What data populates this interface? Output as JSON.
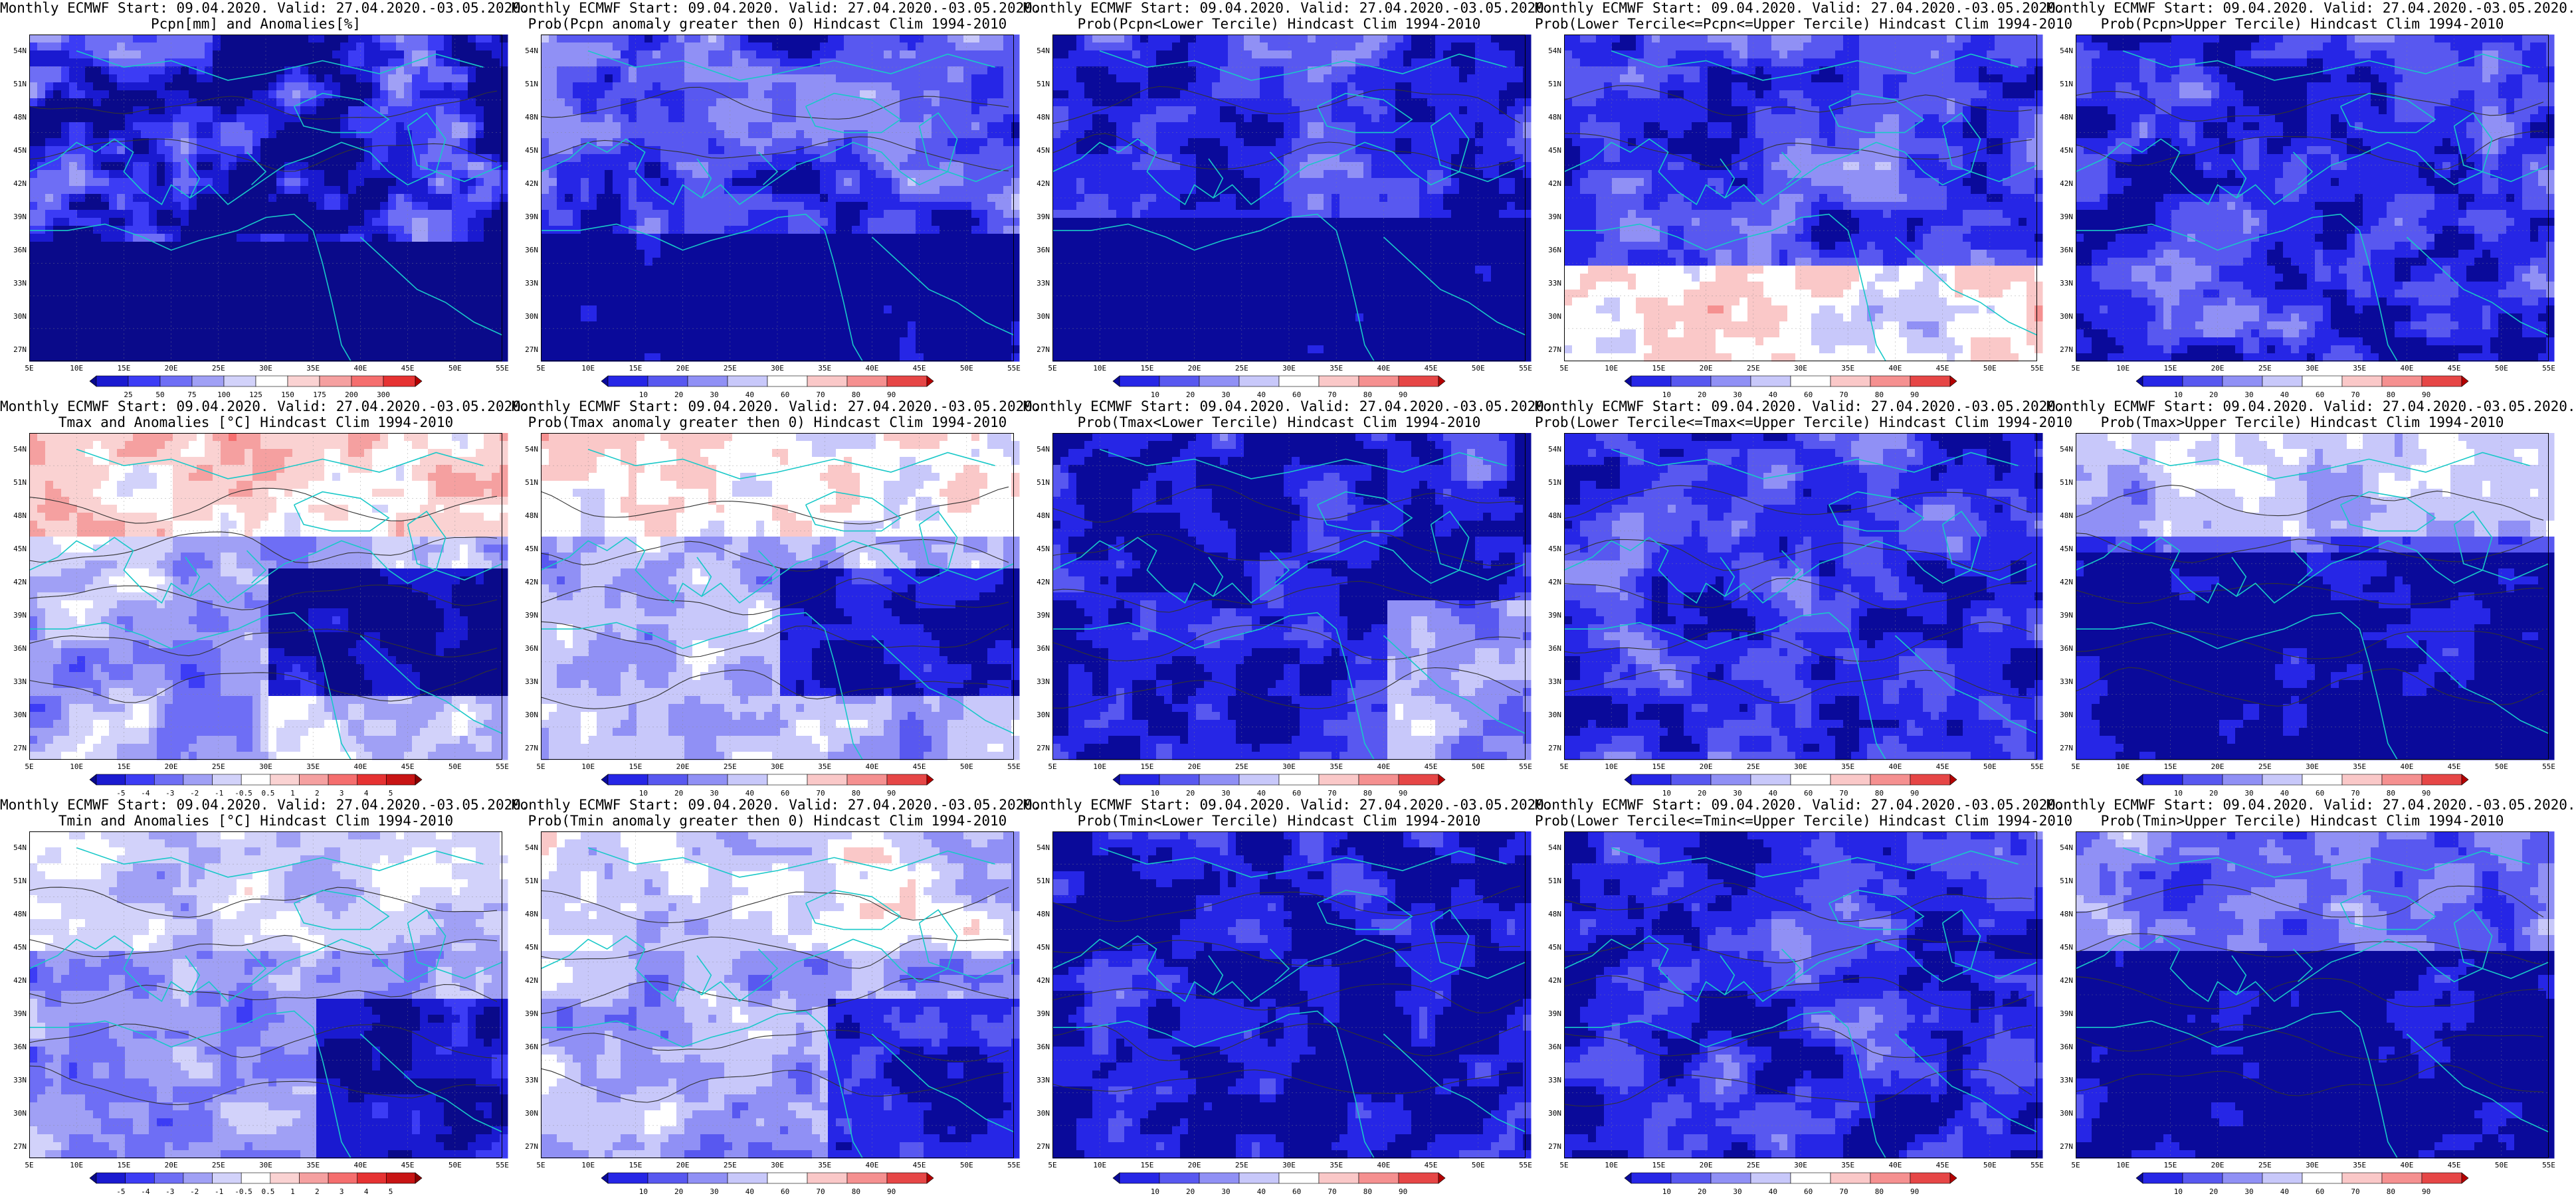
{
  "map_common": {
    "lat_labels": [
      "54N",
      "51N",
      "48N",
      "45N",
      "42N",
      "39N",
      "36N",
      "33N",
      "30N",
      "27N"
    ],
    "lon_labels": [
      "5E",
      "10E",
      "15E",
      "20E",
      "25E",
      "30E",
      "35E",
      "40E",
      "45E",
      "50E",
      "55E"
    ],
    "lat_range": [
      "27N",
      "55N"
    ],
    "lon_range": [
      "5E",
      "55E"
    ],
    "coast_color": "#19c8c8",
    "contour_color": "#333333"
  },
  "colorbars": {
    "pcpn_anom": {
      "labels": [
        "25",
        "50",
        "75",
        "100",
        "125",
        "150",
        "175",
        "200",
        "300"
      ],
      "colors": [
        "#0a0a8a",
        "#1a1ad0",
        "#3c3cf5",
        "#6e6ef5",
        "#a0a0f5",
        "#d2d2fa",
        "#ffffff",
        "#fad2d2",
        "#f5a0a0",
        "#f56e6e",
        "#e63232",
        "#b40000"
      ]
    },
    "prob": {
      "labels": [
        "10",
        "20",
        "30",
        "40",
        "60",
        "70",
        "80",
        "90"
      ],
      "colors": [
        "#0a0a9a",
        "#2626e6",
        "#5858f0",
        "#9090f5",
        "#c8c8fa",
        "#ffffff",
        "#fac8c8",
        "#f59090",
        "#e64646",
        "#b40000"
      ]
    },
    "temp_anom": {
      "labels": [
        "-5",
        "-4",
        "-3",
        "-2",
        "-1",
        "-0.5",
        "0.5",
        "1",
        "2",
        "3",
        "4",
        "5"
      ],
      "colors": [
        "#0a0a8a",
        "#1a1ad0",
        "#3c3cf5",
        "#6e6ef5",
        "#a0a0f5",
        "#d2d2fa",
        "#ffffff",
        "#fad2d2",
        "#f5a0a0",
        "#f56e6e",
        "#e63232",
        "#c81414",
        "#8c0000"
      ]
    }
  },
  "panels": [
    {
      "title1": "Monthly ECMWF Start: 09.04.2020. Valid: 27.04.2020.-03.05.2020.",
      "title2": "Pcpn[mm] and Anomalies[%]",
      "colorbar": "pcpn_anom",
      "field": "pcpn_anom"
    },
    {
      "title1": "Monthly ECMWF Start: 09.04.2020. Valid: 27.04.2020.-03.05.2020.",
      "title2": "Prob(Pcpn anomaly greater then 0) Hindcast Clim 1994-2010",
      "colorbar": "prob",
      "field": "pcpn_prob_gt0"
    },
    {
      "title1": "Monthly ECMWF Start: 09.04.2020. Valid: 27.04.2020.-03.05.2020.",
      "title2": "Prob(Pcpn<Lower Tercile) Hindcast Clim 1994-2010",
      "colorbar": "prob",
      "field": "pcpn_prob_lower"
    },
    {
      "title1": "Monthly ECMWF Start: 09.04.2020. Valid: 27.04.2020.-03.05.2020.",
      "title2": "Prob(Lower Tercile<=Pcpn<=Upper Tercile) Hindcast Clim 1994-2010",
      "colorbar": "prob",
      "field": "pcpn_prob_middle"
    },
    {
      "title1": "Monthly ECMWF Start: 09.04.2020. Valid: 27.04.2020.-03.05.2020.",
      "title2": "Prob(Pcpn>Upper Tercile) Hindcast Clim 1994-2010",
      "colorbar": "prob",
      "field": "pcpn_prob_upper"
    },
    {
      "title1": "Monthly ECMWF Start: 09.04.2020. Valid: 27.04.2020.-03.05.2020.",
      "title2": "Tmax and Anomalies [°C] Hindcast Clim 1994-2010",
      "colorbar": "temp_anom",
      "field": "tmax_anom"
    },
    {
      "title1": "Monthly ECMWF Start: 09.04.2020. Valid: 27.04.2020.-03.05.2020.",
      "title2": "Prob(Tmax anomaly greater then 0) Hindcast Clim 1994-2010",
      "colorbar": "prob",
      "field": "tmax_prob_gt0"
    },
    {
      "title1": "Monthly ECMWF Start: 09.04.2020. Valid: 27.04.2020.-03.05.2020.",
      "title2": "Prob(Tmax<Lower Tercile) Hindcast Clim 1994-2010",
      "colorbar": "prob",
      "field": "tmax_prob_lower"
    },
    {
      "title1": "Monthly ECMWF Start: 09.04.2020. Valid: 27.04.2020.-03.05.2020.",
      "title2": "Prob(Lower Tercile<=Tmax<=Upper Tercile) Hindcast Clim 1994-2010",
      "colorbar": "prob",
      "field": "tmax_prob_middle"
    },
    {
      "title1": "Monthly ECMWF Start: 09.04.2020. Valid: 27.04.2020.-03.05.2020.",
      "title2": "Prob(Tmax>Upper Tercile) Hindcast Clim 1994-2010",
      "colorbar": "prob",
      "field": "tmax_prob_upper"
    },
    {
      "title1": "Monthly ECMWF Start: 09.04.2020. Valid: 27.04.2020.-03.05.2020.",
      "title2": "Tmin and Anomalies [°C] Hindcast Clim 1994-2010",
      "colorbar": "temp_anom",
      "field": "tmin_anom"
    },
    {
      "title1": "Monthly ECMWF Start: 09.04.2020. Valid: 27.04.2020.-03.05.2020.",
      "title2": "Prob(Tmin anomaly greater then 0) Hindcast Clim 1994-2010",
      "colorbar": "prob",
      "field": "tmin_prob_gt0"
    },
    {
      "title1": "Monthly ECMWF Start: 09.04.2020. Valid: 27.04.2020.-03.05.2020.",
      "title2": "Prob(Tmin<Lower Tercile) Hindcast Clim 1994-2010",
      "colorbar": "prob",
      "field": "tmin_prob_lower"
    },
    {
      "title1": "Monthly ECMWF Start: 09.04.2020. Valid: 27.04.2020.-03.05.2020.",
      "title2": "Prob(Lower Tercile<=Tmin<=Upper Tercile) Hindcast Clim 1994-2010",
      "colorbar": "prob",
      "field": "tmin_prob_middle"
    },
    {
      "title1": "Monthly ECMWF Start: 09.04.2020. Valid: 27.04.2020.-03.05.2020.",
      "title2": "Prob(Tmin>Upper Tercile) Hindcast Clim 1994-2010",
      "colorbar": "prob",
      "field": "tmin_prob_upper"
    }
  ]
}
